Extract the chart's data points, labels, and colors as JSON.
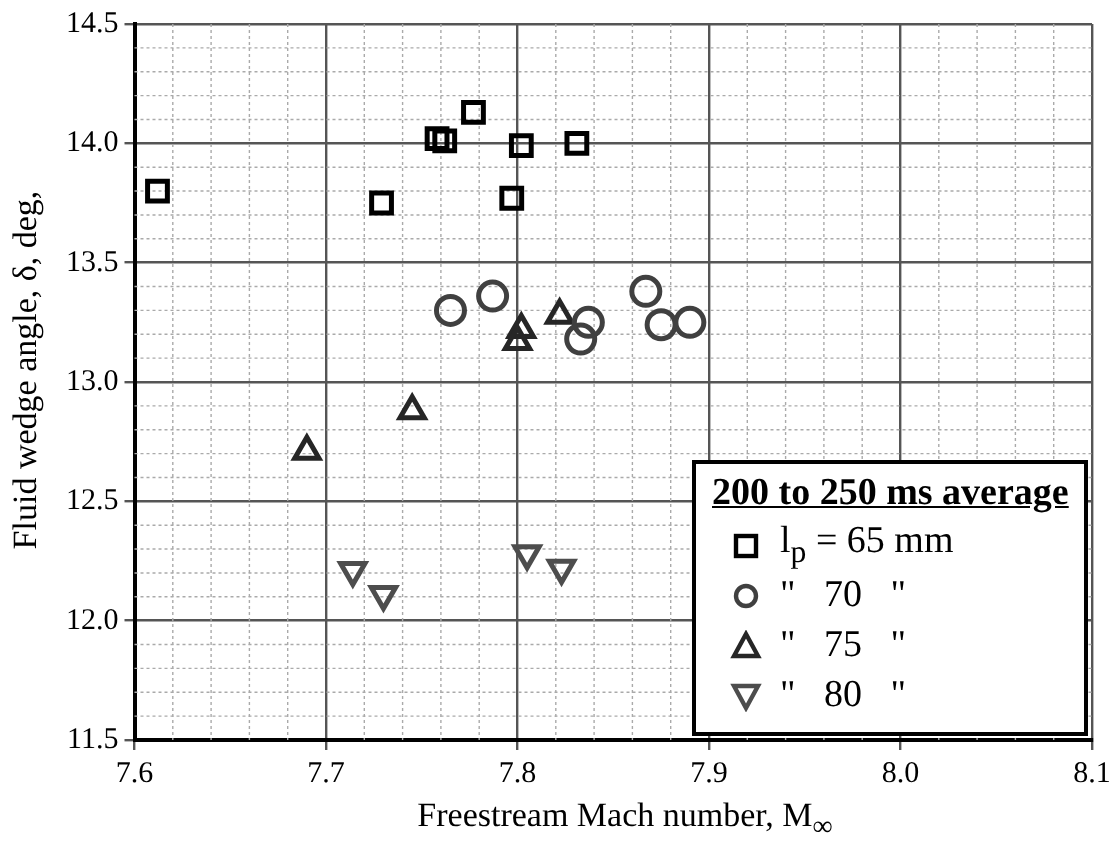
{
  "chart_data": {
    "type": "scatter",
    "xlabel": "Freestream Mach number, M$_{∞}$",
    "ylabel": "Fluid wedge angle, δ, deg,",
    "legend_title": "200 to 250 ms average",
    "xlim": [
      7.6,
      8.1
    ],
    "xticks": [
      7.6,
      7.7,
      7.8,
      7.9,
      {
        "value": 8,
        "label": "8.0"
      },
      8.1
    ],
    "ylim": [
      11.5,
      14.5
    ],
    "yticks": [
      11.5,
      {
        "value": 12,
        "label": "12.0"
      },
      12.5,
      {
        "value": 13,
        "label": "13.0"
      },
      13.5,
      {
        "value": 14,
        "label": "14.0"
      },
      14.5
    ],
    "grid": true,
    "legend": "bottom right",
    "series": [
      {
        "name": "l$_{p}$ = 65 mm",
        "color": "#000000",
        "marker": "square",
        "x": [
          7.612,
          7.729,
          7.758,
          7.762,
          7.777,
          7.802,
          7.797,
          7.831
        ],
        "values": [
          13.8,
          13.75,
          14.02,
          14.01,
          14.13,
          13.99,
          13.77,
          14.0
        ]
      },
      {
        "name": "\"   70   \"",
        "color": "#404040",
        "marker": "circle",
        "x": [
          7.765,
          7.787,
          7.833,
          7.837,
          7.867,
          7.875,
          7.89
        ],
        "values": [
          13.3,
          13.36,
          13.18,
          13.25,
          13.38,
          13.24,
          13.25
        ]
      },
      {
        "name": "\"   75   \"",
        "color": "#262626",
        "marker": "triangle",
        "x": [
          7.69,
          7.745,
          7.802,
          7.8,
          7.822
        ],
        "values": [
          12.71,
          12.88,
          13.22,
          13.17,
          13.28
        ]
      },
      {
        "name": "\"   80   \"",
        "color": "#4d4d4d",
        "marker": "triangle-down",
        "x": [
          7.714,
          7.73,
          7.805,
          7.823
        ],
        "values": [
          12.21,
          12.11,
          12.28,
          12.22
        ]
      }
    ]
  }
}
